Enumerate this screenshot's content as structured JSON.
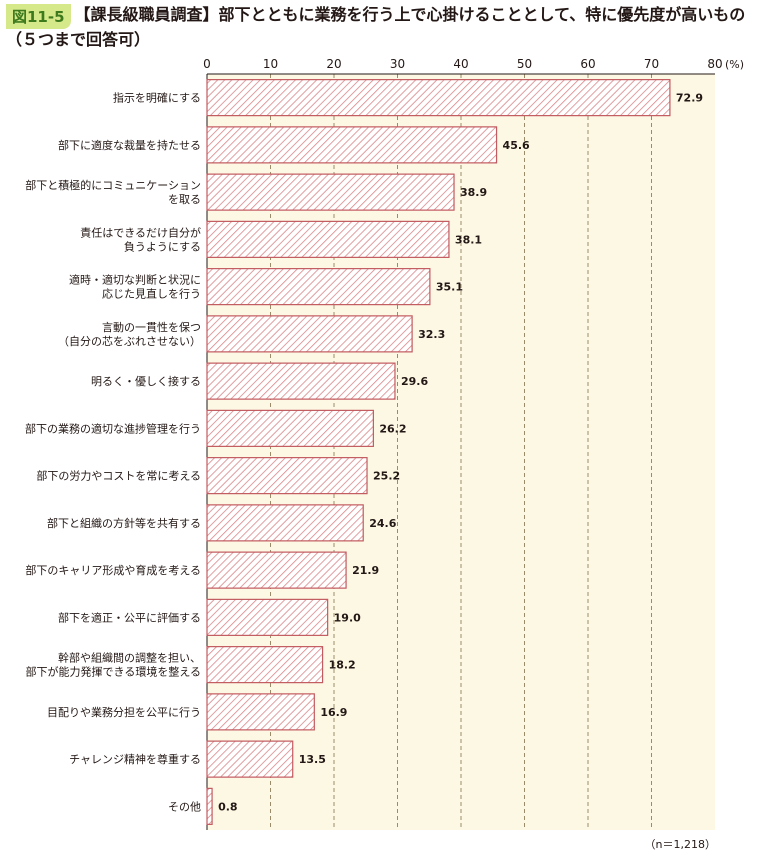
{
  "figure": {
    "badge": "図11-5",
    "title": "【課長級職員調査】部下とともに業務を行う上で心掛けることとして、特に優先度が高いもの（５つまで回答可）",
    "note": "（n＝1,218）"
  },
  "colors": {
    "plot_background": "#fdf8e4",
    "bar_stroke": "#c25a5f",
    "bar_hatch": "#d9868a",
    "grid": "#9a8c6a",
    "badge_bg": "#d6e98a",
    "badge_text": "#3d7a1e"
  },
  "chart_data": {
    "type": "bar",
    "orientation": "horizontal",
    "title": "【課長級職員調査】部下とともに業務を行う上で心掛けることとして、特に優先度が高いもの（５つまで回答可）",
    "unit": "(%)",
    "xlim": [
      0,
      80
    ],
    "xticks": [
      0,
      10,
      20,
      30,
      40,
      50,
      60,
      70,
      80
    ],
    "grid": true,
    "categories": [
      [
        "指示を明確にする"
      ],
      [
        "部下に適度な裁量を持たせる"
      ],
      [
        "部下と積極的にコミュニケーション",
        "を取る"
      ],
      [
        "責任はできるだけ自分が",
        "負うようにする"
      ],
      [
        "適時・適切な判断と状況に",
        "応じた見直しを行う"
      ],
      [
        "言動の一貫性を保つ",
        "（自分の芯をぶれさせない）"
      ],
      [
        "明るく・優しく接する"
      ],
      [
        "部下の業務の適切な進捗管理を行う"
      ],
      [
        "部下の労力やコストを常に考える"
      ],
      [
        "部下と組織の方針等を共有する"
      ],
      [
        "部下のキャリア形成や育成を考える"
      ],
      [
        "部下を適正・公平に評価する"
      ],
      [
        "幹部や組織間の調整を担い、",
        "部下が能力発揮できる環境を整える"
      ],
      [
        "目配りや業務分担を公平に行う"
      ],
      [
        "チャレンジ精神を尊重する"
      ],
      [
        "その他"
      ]
    ],
    "values": [
      72.9,
      45.6,
      38.9,
      38.1,
      35.1,
      32.3,
      29.6,
      26.2,
      25.2,
      24.6,
      21.9,
      19.0,
      18.2,
      16.9,
      13.5,
      0.8
    ],
    "value_labels": [
      "72.9",
      "45.6",
      "38.9",
      "38.1",
      "35.1",
      "32.3",
      "29.6",
      "26.2",
      "25.2",
      "24.6",
      "21.9",
      "19.0",
      "18.2",
      "16.9",
      "13.5",
      "0.8"
    ]
  }
}
